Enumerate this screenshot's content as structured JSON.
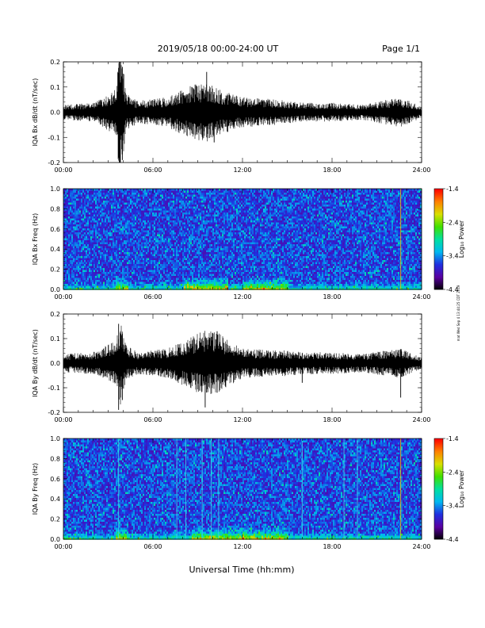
{
  "header": {
    "title": "2019/05/18  00:00-24:00 UT",
    "page": "Page 1/1"
  },
  "side_note": "mat Wed Sep 4 13:44:25 CDT 2019",
  "x_axis_label": "Universal Time (hh:mm)",
  "colors": {
    "trace": "#000000",
    "spectrogram_background": "#1a2fe0",
    "colormap": [
      "#000000",
      "#5a00a0",
      "#1f2fe0",
      "#00b8f0",
      "#00e0a0",
      "#40e000",
      "#d8e000",
      "#ff8000",
      "#ff0000"
    ]
  },
  "chart_data": [
    {
      "type": "line",
      "panel": "bx_timeseries",
      "ylabel": "IQA Bx dB/dt (nT/sec)",
      "x_ticks": [
        "00:00",
        "06:00",
        "12:00",
        "18:00",
        "24:00"
      ],
      "xlim_hours": [
        0,
        24
      ],
      "ylim": [
        -0.2,
        0.2
      ],
      "y_ticks": [
        "0.2",
        "0.1",
        "0.0",
        "-0.1",
        "-0.2"
      ],
      "noise_envelope": {
        "hours": [
          0,
          2,
          3.5,
          3.8,
          4.2,
          5,
          7,
          8.5,
          9.5,
          10.5,
          12,
          14,
          15,
          16,
          18,
          20,
          22.6,
          24
        ],
        "amplitude": [
          0.02,
          0.025,
          0.06,
          0.2,
          0.05,
          0.03,
          0.04,
          0.07,
          0.08,
          0.06,
          0.04,
          0.035,
          0.03,
          0.025,
          0.025,
          0.02,
          0.04,
          0.015
        ]
      },
      "spikes": [
        {
          "hour": 3.75,
          "min": -0.2,
          "max": 0.2
        },
        {
          "hour": 3.95,
          "min": -0.19,
          "max": 0.18
        },
        {
          "hour": 8.6,
          "min": -0.06,
          "max": 0.1
        },
        {
          "hour": 9.6,
          "min": -0.1,
          "max": 0.16
        },
        {
          "hour": 10.1,
          "min": -0.12,
          "max": 0.08
        },
        {
          "hour": 13.8,
          "min": -0.05,
          "max": 0.05
        },
        {
          "hour": 22.6,
          "min": -0.03,
          "max": 0.05
        }
      ]
    },
    {
      "type": "heatmap",
      "panel": "bx_spectrogram",
      "ylabel": "IQA Bx Freq (Hz)",
      "x_ticks": [
        "00:00",
        "06:00",
        "12:00",
        "18:00",
        "24:00"
      ],
      "xlim_hours": [
        0,
        24
      ],
      "ylim": [
        0.0,
        1.0
      ],
      "y_ticks": [
        "1.0",
        "0.8",
        "0.6",
        "0.4",
        "0.2",
        "0.0"
      ],
      "colorbar": {
        "label": "Log₁₀ Power",
        "range": [
          -4.4,
          -1.4
        ],
        "ticks": [
          "-1.4",
          "-2.4",
          "-3.4",
          "-4.4"
        ]
      },
      "low_freq_enhancement_hours": [
        [
          3.5,
          4.3
        ],
        [
          8.0,
          11.0
        ],
        [
          12.0,
          15.0
        ]
      ],
      "vertical_lines_hours": [
        22.6
      ]
    },
    {
      "type": "line",
      "panel": "by_timeseries",
      "ylabel": "IQA By dB/dt (nT/sec)",
      "x_ticks": [
        "00:00",
        "06:00",
        "12:00",
        "18:00",
        "24:00"
      ],
      "xlim_hours": [
        0,
        24
      ],
      "ylim": [
        -0.2,
        0.2
      ],
      "y_ticks": [
        "0.2",
        "0.1",
        "0.0",
        "-0.1",
        "-0.2"
      ],
      "noise_envelope": {
        "hours": [
          0,
          2,
          3.5,
          3.8,
          4.2,
          5,
          7,
          8.5,
          9.5,
          10.5,
          12,
          14,
          15,
          16,
          18,
          20,
          22.6,
          24
        ],
        "amplitude": [
          0.025,
          0.03,
          0.06,
          0.12,
          0.05,
          0.03,
          0.04,
          0.07,
          0.09,
          0.08,
          0.04,
          0.035,
          0.035,
          0.03,
          0.03,
          0.025,
          0.04,
          0.015
        ]
      },
      "spikes": [
        {
          "hour": 3.7,
          "min": -0.19,
          "max": 0.16
        },
        {
          "hour": 3.95,
          "min": -0.15,
          "max": 0.12
        },
        {
          "hour": 9.5,
          "min": -0.18,
          "max": 0.1
        },
        {
          "hour": 10.3,
          "min": -0.12,
          "max": 0.13
        },
        {
          "hour": 16.0,
          "min": -0.08,
          "max": 0.04
        },
        {
          "hour": 22.6,
          "min": -0.14,
          "max": 0.05
        }
      ]
    },
    {
      "type": "heatmap",
      "panel": "by_spectrogram",
      "ylabel": "IQA By Freq (Hz)",
      "x_ticks": [
        "00:00",
        "06:00",
        "12:00",
        "18:00",
        "24:00"
      ],
      "xlim_hours": [
        0,
        24
      ],
      "ylim": [
        0.0,
        1.0
      ],
      "y_ticks": [
        "1.0",
        "0.8",
        "0.6",
        "0.4",
        "0.2",
        "0.0"
      ],
      "colorbar": {
        "label": "Log₁₀ Power",
        "range": [
          -4.4,
          -1.4
        ],
        "ticks": [
          "-1.4",
          "-2.4",
          "-3.4",
          "-4.4"
        ]
      },
      "low_freq_enhancement_hours": [
        [
          3.5,
          4.3
        ],
        [
          8.5,
          12.0
        ],
        [
          12.0,
          15.0
        ]
      ],
      "vertical_lines_hours": [
        3.7,
        7.6,
        8.2,
        9.3,
        9.9,
        10.4,
        16.0,
        18.8,
        19.7,
        22.6
      ]
    }
  ]
}
